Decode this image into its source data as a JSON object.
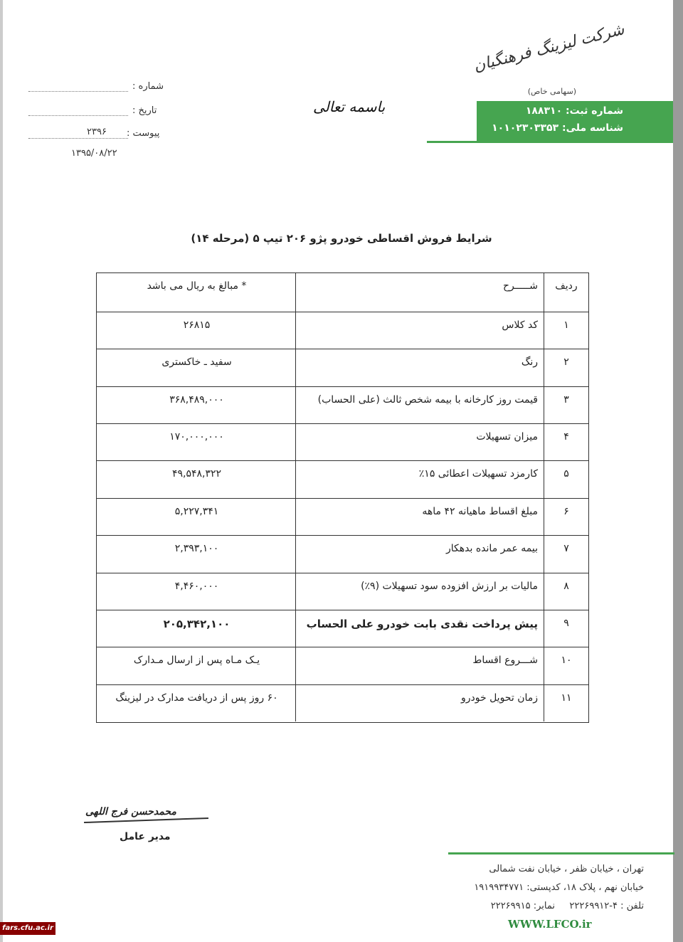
{
  "header": {
    "logo_text": "شرکت لیزینگ فرهنگیان",
    "logo_sub": "(سهامی خاص)",
    "registration": "شماره ثبت: ۱۸۸۳۱۰",
    "national_id": "شناسه ملی: ۱۰۱۰۲۳۰۳۳۵۳",
    "bismillah": "باسمه تعالی",
    "number_label": "شماره :",
    "date_label": "تاریخ :",
    "attachment_label": "پیوست :",
    "attachment_value": "۲۳۹۶",
    "date": "۱۳۹۵/۰۸/۲۲"
  },
  "title": "شرایط فروش اقساطی خودرو پژو ۲۰۶ تیپ ۵ (مرحله ۱۴)",
  "table": {
    "header": [
      "ردیف",
      "شـــــرح",
      "* مبالغ به ریال می باشد"
    ],
    "rows": [
      [
        "۱",
        "کد کلاس",
        "۲۶۸۱۵"
      ],
      [
        "۲",
        "رنگ",
        "سفید ـ خاکستری"
      ],
      [
        "۳",
        "قیمت روز کارخانه با بیمه شخص ثالث (علی الحساب)",
        "۳۶۸,۴۸۹,۰۰۰"
      ],
      [
        "۴",
        "میزان تسهیلات",
        "۱۷۰,۰۰۰,۰۰۰"
      ],
      [
        "۵",
        "کارمزد تسهیلات اعطائی ۱۵٪",
        "۴۹,۵۴۸,۳۲۲"
      ],
      [
        "۶",
        "مبلغ اقساط ماهیانه ۴۲ ماهه",
        "۵,۲۲۷,۳۴۱"
      ],
      [
        "۷",
        "بیمه عمر مانده بدهکار",
        "۲,۳۹۳,۱۰۰"
      ],
      [
        "۸",
        "مالیات بر ارزش افزوده سود تسهیلات (۹٪)",
        "۴,۴۶۰,۰۰۰"
      ],
      [
        "۹",
        "پیش پرداخت نقدی بابت خودرو علی الحساب",
        "۲۰۵,۳۴۲,۱۰۰"
      ],
      [
        "۱۰",
        "شـــروع اقساط",
        "یـک مـاه پس از ارسال مـدارک"
      ],
      [
        "۱۱",
        "زمان تحویل خودرو",
        "۶۰ روز پس از دریافت مدارک در لیزینگ"
      ]
    ]
  },
  "signature": {
    "name": "محمدحسن فرج اللهی",
    "position": "مدیر عامل"
  },
  "footer": {
    "address_1": "تهران ، خیابان ظفر ، خیابان نفت شمالی",
    "address_2": "خیابان نهم ، پلاک ۱۸، کدپستی: ۱۹۱۹۹۳۴۷۷۱",
    "phone": "تلفن : ۴-۲۲۲۶۹۹۱۲",
    "fax": "نمابر: ۲۲۲۶۹۹۱۵",
    "website": "WWW.LFCO.ir",
    "watermark": "fars.cfu.ac.ir"
  }
}
